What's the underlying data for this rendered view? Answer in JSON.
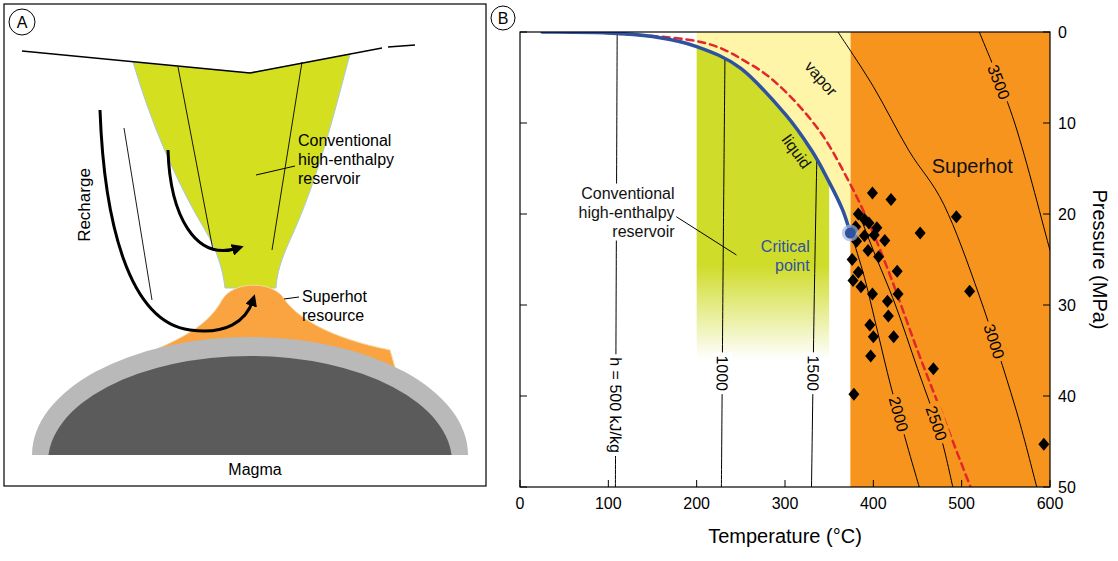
{
  "diagram": {
    "panel_label": "A",
    "recharge": "Recharge",
    "conventional": "Conventional high-enthalpy reservoir",
    "superhot": "Superhot resource",
    "magma": "Magma"
  },
  "chart_data": {
    "type": "line",
    "panel_label": "B",
    "x_label": "Temperature (°C)",
    "y_label": "Pressure (MPa)",
    "xlim": [
      0,
      600
    ],
    "xticks": [
      0,
      100,
      200,
      300,
      400,
      500,
      600
    ],
    "ylim": [
      50,
      0
    ],
    "yticks": [
      0,
      10,
      20,
      30,
      40,
      50
    ],
    "regions": [
      {
        "label": "Superhot",
        "type": "rect",
        "x": [
          374,
          600
        ],
        "y": [
          50,
          0
        ],
        "color": "#f7941e"
      },
      {
        "type": "above_line",
        "x": [
          200,
          374
        ],
        "color": "#fff5a8"
      },
      {
        "label": "Conventional high-enthalpy reservoir",
        "type": "below_line",
        "x": [
          200,
          350
        ],
        "y": 36,
        "color": "#d0dc2a"
      }
    ],
    "annotations": [
      "liquid",
      "vapor"
    ],
    "series": [
      {
        "type": "line",
        "color": "#2f52a0",
        "line_style": "solid",
        "x": [
          25,
          100,
          150,
          200,
          250,
          300,
          330,
          350,
          365,
          374
        ],
        "values": [
          0,
          0.1,
          0.5,
          1.6,
          4,
          9,
          13,
          16.5,
          19.5,
          22.1
        ]
      },
      {
        "type": "line",
        "color": "#e3262c",
        "line_style": "dashed",
        "x": [
          80,
          200,
          260,
          300,
          340,
          370,
          395,
          420,
          450,
          480,
          510
        ],
        "values": [
          0,
          1,
          3.5,
          6.5,
          11,
          16,
          21,
          27,
          35,
          42.5,
          50
        ]
      },
      {
        "name": "h = 500 kJ/kg",
        "type": "line",
        "color": "#000000",
        "line_style": "solid",
        "x": [
          110,
          109,
          108
        ],
        "values": [
          0.15,
          25,
          50
        ]
      },
      {
        "name": "1000",
        "type": "line",
        "color": "#000000",
        "line_style": "solid",
        "x": [
          232,
          230,
          228
        ],
        "values": [
          3.1,
          25,
          50
        ]
      },
      {
        "name": "1500",
        "type": "line",
        "color": "#000000",
        "line_style": "solid",
        "x": [
          336,
          333,
          330
        ],
        "values": [
          14.05,
          30,
          50
        ]
      },
      {
        "name": "2000",
        "type": "line",
        "color": "#000000",
        "line_style": "solid",
        "x": [
          376,
          390,
          405,
          420,
          440,
          452
        ],
        "values": [
          22.5,
          27,
          33,
          39,
          46,
          50
        ]
      },
      {
        "name": "2500",
        "type": "line",
        "color": "#000000",
        "line_style": "solid",
        "x": [
          384,
          400,
          425,
          450,
          475,
          490
        ],
        "values": [
          20,
          24,
          30,
          37,
          44,
          50
        ]
      },
      {
        "name": "3000",
        "type": "line",
        "color": "#000000",
        "line_style": "solid",
        "x": [
          360,
          400,
          440,
          480,
          520,
          560,
          585
        ],
        "values": [
          0,
          6,
          13,
          19,
          29,
          41,
          50
        ]
      },
      {
        "name": "3500",
        "type": "line",
        "color": "#000000",
        "line_style": "solid",
        "x": [
          520,
          560,
          600
        ],
        "values": [
          0,
          10,
          24
        ]
      },
      {
        "type": "scatter",
        "marker": "diamond",
        "color": "#000000",
        "x": [
          399,
          420,
          383,
          390,
          380,
          395,
          404,
          401,
          390,
          381,
          413,
          394,
          376,
          406,
          383,
          377,
          386,
          427,
          399,
          416,
          428,
          396,
          417,
          400,
          423,
          453,
          494,
          468,
          509,
          593,
          378,
          397
        ],
        "values": [
          17.7,
          18.4,
          20,
          20.6,
          21.4,
          21,
          21.5,
          22.3,
          22.4,
          23,
          22.9,
          24,
          25,
          24.7,
          26.4,
          27.3,
          28,
          26.3,
          28.8,
          29.6,
          28.8,
          32.2,
          31.2,
          33.5,
          33.5,
          22.1,
          20.3,
          37,
          28.5,
          45.3,
          39.8,
          35.6
        ]
      },
      {
        "name": "Critical point",
        "type": "scatter",
        "marker": "circle",
        "color": "#2f52a0",
        "x": [
          374
        ],
        "values": [
          22.1
        ]
      }
    ]
  }
}
